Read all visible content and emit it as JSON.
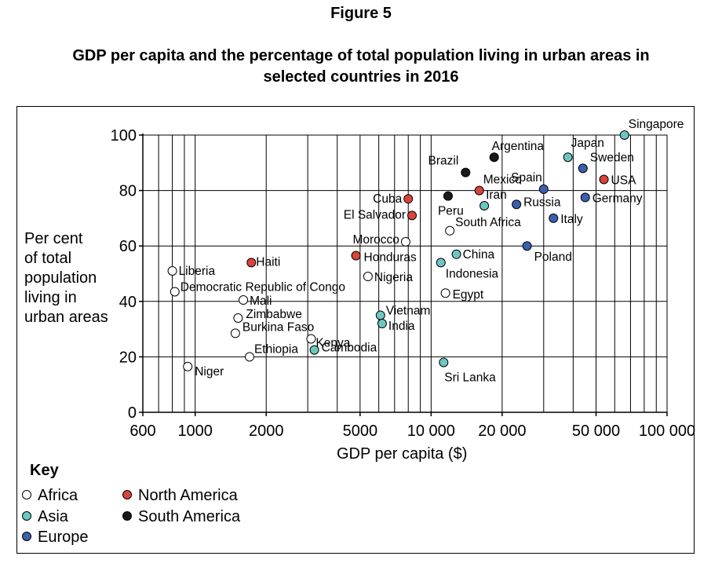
{
  "figure_label": "Figure 5",
  "title_line1": "GDP per capita and the percentage of total population living in urban areas in",
  "title_line2": "selected countries in 2016",
  "key": {
    "title": "Key",
    "items": [
      {
        "label": "Africa",
        "color": "#ffffff"
      },
      {
        "label": "Asia",
        "color": "#6cc7c0"
      },
      {
        "label": "Europe",
        "color": "#3a5fad"
      },
      {
        "label": "North America",
        "color": "#d9443a"
      },
      {
        "label": "South America",
        "color": "#1a1a1a"
      }
    ]
  },
  "chart_data": {
    "type": "scatter",
    "x_scale": "log",
    "xlabel": "GDP per capita ($)",
    "ylabel_lines": [
      "Per cent",
      "of total",
      "population",
      "living in",
      "urban areas"
    ],
    "xlim": [
      600,
      100000
    ],
    "ylim": [
      0,
      100
    ],
    "x_ticks": [
      {
        "value": 600,
        "label": "600"
      },
      {
        "value": 1000,
        "label": "1000"
      },
      {
        "value": 2000,
        "label": "2000"
      },
      {
        "value": 5000,
        "label": "5000"
      },
      {
        "value": 10000,
        "label": "10 000"
      },
      {
        "value": 20000,
        "label": "20 000"
      },
      {
        "value": 50000,
        "label": "50 000"
      },
      {
        "value": 100000,
        "label": "100 000"
      }
    ],
    "y_ticks": [
      0,
      20,
      40,
      60,
      80,
      100
    ],
    "grid": true,
    "series": [
      {
        "name": "Africa",
        "color": "#ffffff",
        "points": [
          {
            "label": "Liberia",
            "x": 800,
            "y": 51
          },
          {
            "label": "Democratic Republic of Congo",
            "x": 820,
            "y": 43.5
          },
          {
            "label": "Niger",
            "x": 930,
            "y": 16.5
          },
          {
            "label": "Mali",
            "x": 1600,
            "y": 40.5
          },
          {
            "label": "Zimbabwe",
            "x": 1520,
            "y": 34
          },
          {
            "label": "Burkina Faso",
            "x": 1480,
            "y": 28.5
          },
          {
            "label": "Ethiopia",
            "x": 1700,
            "y": 20
          },
          {
            "label": "Kenya",
            "x": 3100,
            "y": 26.5
          },
          {
            "label": "Morocco",
            "x": 7800,
            "y": 61.5
          },
          {
            "label": "Nigeria",
            "x": 5400,
            "y": 49
          },
          {
            "label": "South Africa",
            "x": 12000,
            "y": 65.5
          },
          {
            "label": "Egypt",
            "x": 11500,
            "y": 43
          }
        ]
      },
      {
        "name": "Asia",
        "color": "#6cc7c0",
        "points": [
          {
            "label": "Cambodia",
            "x": 3200,
            "y": 22.5
          },
          {
            "label": "Vietnam",
            "x": 6100,
            "y": 35
          },
          {
            "label": "India",
            "x": 6200,
            "y": 32
          },
          {
            "label": "China",
            "x": 12800,
            "y": 57
          },
          {
            "label": "Indonesia",
            "x": 11000,
            "y": 54
          },
          {
            "label": "Sri Lanka",
            "x": 11300,
            "y": 18
          },
          {
            "label": "Iran",
            "x": 16800,
            "y": 74.5
          },
          {
            "label": "Japan",
            "x": 38000,
            "y": 92
          },
          {
            "label": "Singapore",
            "x": 66000,
            "y": 100
          }
        ]
      },
      {
        "name": "Europe",
        "color": "#3a5fad",
        "points": [
          {
            "label": "Russia",
            "x": 23000,
            "y": 75
          },
          {
            "label": "Spain",
            "x": 30000,
            "y": 80.5
          },
          {
            "label": "Sweden",
            "x": 44000,
            "y": 88
          },
          {
            "label": "Germany",
            "x": 45000,
            "y": 77.5
          },
          {
            "label": "Italy",
            "x": 33000,
            "y": 70
          },
          {
            "label": "Poland",
            "x": 25500,
            "y": 60
          }
        ]
      },
      {
        "name": "North America",
        "color": "#d9443a",
        "points": [
          {
            "label": "Haiti",
            "x": 1730,
            "y": 54
          },
          {
            "label": "Cuba",
            "x": 8000,
            "y": 77
          },
          {
            "label": "El Salvador",
            "x": 8300,
            "y": 71
          },
          {
            "label": "Honduras",
            "x": 4800,
            "y": 56.5
          },
          {
            "label": "Mexico",
            "x": 16000,
            "y": 80
          },
          {
            "label": "USA",
            "x": 54000,
            "y": 84
          }
        ]
      },
      {
        "name": "South America",
        "color": "#1a1a1a",
        "points": [
          {
            "label": "Brazil",
            "x": 14000,
            "y": 86.5
          },
          {
            "label": "Argentina",
            "x": 18500,
            "y": 92
          },
          {
            "label": "Peru",
            "x": 11800,
            "y": 78
          }
        ]
      }
    ]
  }
}
